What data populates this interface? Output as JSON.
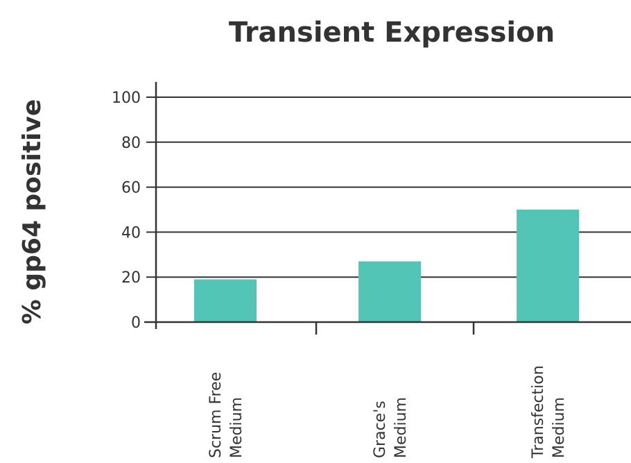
{
  "chart_data": {
    "type": "bar",
    "title": "Transient Expression",
    "xlabel": "",
    "ylabel": "% gp64 positive",
    "categories": [
      [
        "Scrum Free",
        "Medium"
      ],
      [
        "Grace's",
        "Medium"
      ],
      [
        "Transfection",
        "Medium"
      ]
    ],
    "values": [
      19,
      27,
      50
    ],
    "yticks": [
      0,
      20,
      40,
      60,
      80,
      100
    ],
    "ylim": [
      0,
      100
    ],
    "grid": true,
    "legend": "none",
    "bar_color": "#52c5b6",
    "axis_color": "#333333"
  }
}
